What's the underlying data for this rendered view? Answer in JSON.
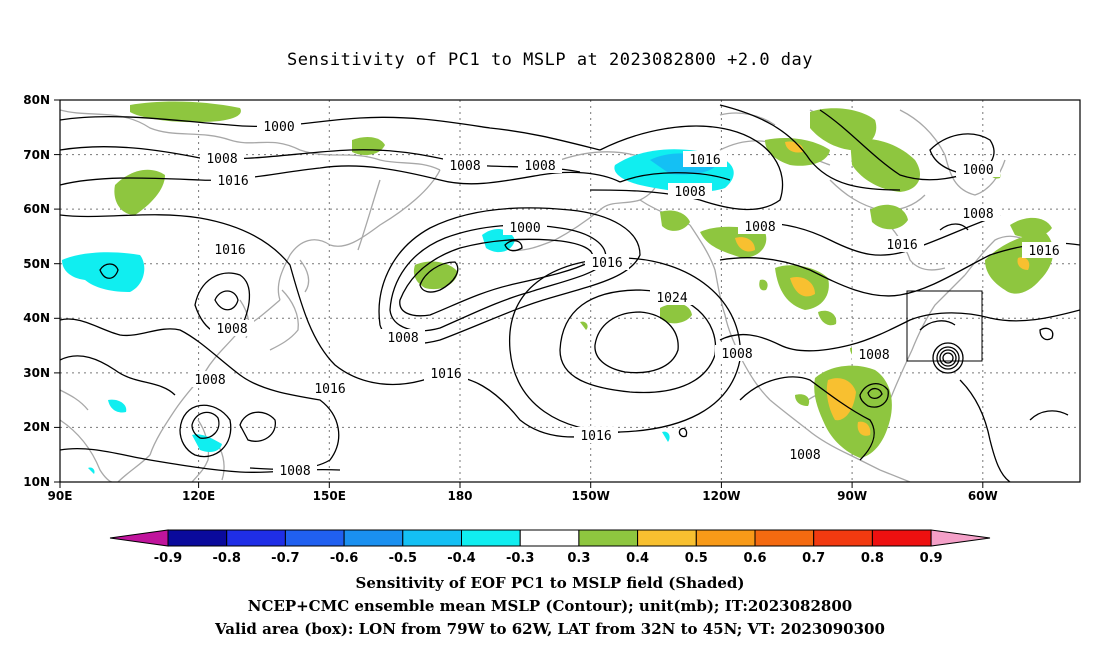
{
  "title": "Sensitivity of PC1 to MSLP at 2023082800 +2.0 day",
  "lat_labels": [
    "80N",
    "70N",
    "60N",
    "50N",
    "40N",
    "30N",
    "20N",
    "10N"
  ],
  "lon_labels": [
    "90E",
    "120E",
    "150E",
    "180",
    "150W",
    "120W",
    "90W",
    "60W"
  ],
  "contour_labels": [
    {
      "text": "1000"
    },
    {
      "text": "1008"
    },
    {
      "text": "1016"
    },
    {
      "text": "1008"
    },
    {
      "text": "1008"
    },
    {
      "text": "1016"
    },
    {
      "text": "1008"
    },
    {
      "text": "1000"
    },
    {
      "text": "1016"
    },
    {
      "text": "1008"
    },
    {
      "text": "1016"
    },
    {
      "text": "1024"
    },
    {
      "text": "1016"
    },
    {
      "text": "1008"
    },
    {
      "text": "1016"
    },
    {
      "text": "1008"
    },
    {
      "text": "1008"
    },
    {
      "text": "1008"
    },
    {
      "text": "1008"
    },
    {
      "text": "1016"
    },
    {
      "text": "1000"
    },
    {
      "text": "1008"
    },
    {
      "text": "1016"
    },
    {
      "text": "1008"
    },
    {
      "text": "1016"
    },
    {
      "text": "1008"
    }
  ],
  "colorbar": {
    "labels": [
      "-0.9",
      "-0.8",
      "-0.7",
      "-0.6",
      "-0.5",
      "-0.4",
      "-0.3",
      "0.3",
      "0.4",
      "0.5",
      "0.6",
      "0.7",
      "0.8",
      "0.9"
    ],
    "colors": [
      "#0a0a9c",
      "#1f2ee6",
      "#2060f0",
      "#1a90f0",
      "#14c0f4",
      "#10eef0",
      "#ffffff",
      "#8ec63f",
      "#f8c030",
      "#f89a18",
      "#f46a10",
      "#f23a10",
      "#ee1010"
    ],
    "low_end_color": "#c0149c",
    "high_end_color": "#f4a0c8"
  },
  "colors": {
    "positive_04": "#8ec63f",
    "positive_05": "#f8c030",
    "negative_04": "#10eef0",
    "negative_05": "#14c0f4",
    "coastline": "#a8a8a8",
    "contour": "#000000"
  },
  "captions": {
    "line1": "Sensitivity of EOF PC1 to MSLP field (Shaded)",
    "line2": "NCEP+CMC ensemble mean MSLP (Contour); unit(mb); IT:2023082800",
    "line3": "Valid area (box): LON from 79W to 62W, LAT from 32N to 45N; VT: 2023090300"
  }
}
